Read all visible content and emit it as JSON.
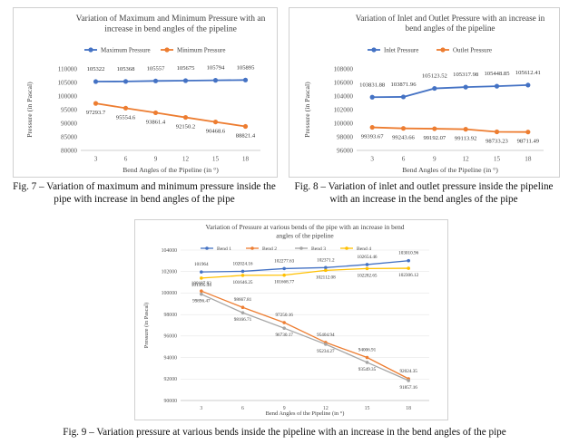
{
  "captions": {
    "fig7": "Fig. 7 – Variation of maximum and minimum pressure inside the pipe with increase in bend angles of the pipe",
    "fig8": "Fig. 8 – Variation of inlet and outlet pressure inside the pipeline with an increase in the bend angles of the pipe",
    "fig9": "Fig. 9 – Variation pressure at various bends inside the pipeline with an increase in the bend angles of the pipe"
  },
  "chart_data": [
    {
      "type": "line",
      "title": "Variation of Maximum and Minimum Pressure with an increase in bend angles of the pipeline",
      "xlabel": "Bend Angles of the Pipeline (in °)",
      "ylabel": "Pressure (in Pascal)",
      "categories": [
        "3",
        "6",
        "9",
        "12",
        "15",
        "18"
      ],
      "ylim": [
        80000,
        110000
      ],
      "yticks": [
        "80000",
        "85000",
        "90000",
        "95000",
        "100000",
        "105000",
        "110000"
      ],
      "legend": "top",
      "grid": false,
      "series": [
        {
          "name": "Maximum Pressure",
          "color": "#4472c4",
          "values": [
            105322,
            105368,
            105557,
            105675,
            105794,
            105895
          ],
          "labels": [
            "105322",
            "105368",
            "105557",
            "105675",
            "105794",
            "105895"
          ]
        },
        {
          "name": "Minimum Pressure",
          "color": "#ed7d31",
          "values": [
            97293.7,
            95554.6,
            93861.4,
            92150.2,
            90468.6,
            88821.4
          ],
          "labels": [
            "97293.7",
            "95554.6",
            "93861.4",
            "92150.2",
            "90468.6",
            "88821.4"
          ]
        }
      ]
    },
    {
      "type": "line",
      "title": "Variation of Inlet and Outlet Pressure with an increase in bend angles of the pipeline",
      "xlabel": "Bend Angles of the Pipeline (in °)",
      "ylabel": "Pressure (in Pascal)",
      "categories": [
        "3",
        "6",
        "9",
        "12",
        "15",
        "18"
      ],
      "ylim": [
        96000,
        108000
      ],
      "yticks": [
        "96000",
        "98000",
        "100000",
        "102000",
        "104000",
        "106000",
        "108000"
      ],
      "legend": "top",
      "grid": false,
      "series": [
        {
          "name": "Inlet Pressure",
          "color": "#4472c4",
          "values": [
            103831.88,
            103871.96,
            105123.52,
            105317.98,
            105448.85,
            105612.41
          ],
          "labels": [
            "103831.88",
            "103871.96",
            "105123.52",
            "105317.98",
            "105448.85",
            "105612.41"
          ]
        },
        {
          "name": "Outlet Pressure",
          "color": "#ed7d31",
          "values": [
            99393.67,
            99243.66,
            99192.07,
            99113.92,
            98733.23,
            98711.49
          ],
          "labels": [
            "99393.67",
            "99243.66",
            "99192.07",
            "99113.92",
            "98733.23",
            "98711.49"
          ]
        }
      ]
    },
    {
      "type": "line",
      "title": "Variation of Pressure at various bends of the pipe with an increase in bend angles of the pipeline",
      "xlabel": "Bend Angles of the Pipeline (in °)",
      "ylabel": "Pressure (in Pascal)",
      "categories": [
        "3",
        "6",
        "9",
        "12",
        "15",
        "18"
      ],
      "ylim": [
        90000,
        104000
      ],
      "yticks": [
        "90000",
        "92000",
        "94000",
        "96000",
        "98000",
        "100000",
        "102000",
        "104000"
      ],
      "legend": "top",
      "grid": true,
      "series": [
        {
          "name": "Bend 1",
          "color": "#4472c4",
          "values": [
            101964,
            102024.16,
            102277.63,
            102371.2,
            102654.46,
            103010.96
          ],
          "labels": [
            "101964",
            "102024.16",
            "102277.63",
            "102371.2",
            "102654.46",
            "103010.96"
          ]
        },
        {
          "name": "Bend 2",
          "color": "#ed7d31",
          "values": [
            100187.93,
            98667.81,
            97250.16,
            95404.94,
            94006.91,
            92024.35
          ],
          "labels": [
            "100187.93",
            "98667.81",
            "97250.16",
            "95404.94",
            "94006.91",
            "92024.35"
          ]
        },
        {
          "name": "Bend 3",
          "color": "#a5a5a5",
          "values": [
            99896.47,
            98166.71,
            96730.17,
            95234.27,
            93549.35,
            91857.16
          ],
          "labels": [
            "99896.47",
            "98166.71",
            "96730.17",
            "95234.27",
            "93549.35",
            "91857.16"
          ]
        },
        {
          "name": "Bend 4",
          "color": "#ffc000",
          "values": [
            101395.34,
            101646.25,
            101668.77,
            102112.08,
            102282.65,
            102306.12
          ],
          "labels": [
            "101395.34",
            "101646.25",
            "101668.77",
            "102112.08",
            "102282.65",
            "102306.12"
          ]
        }
      ]
    }
  ]
}
